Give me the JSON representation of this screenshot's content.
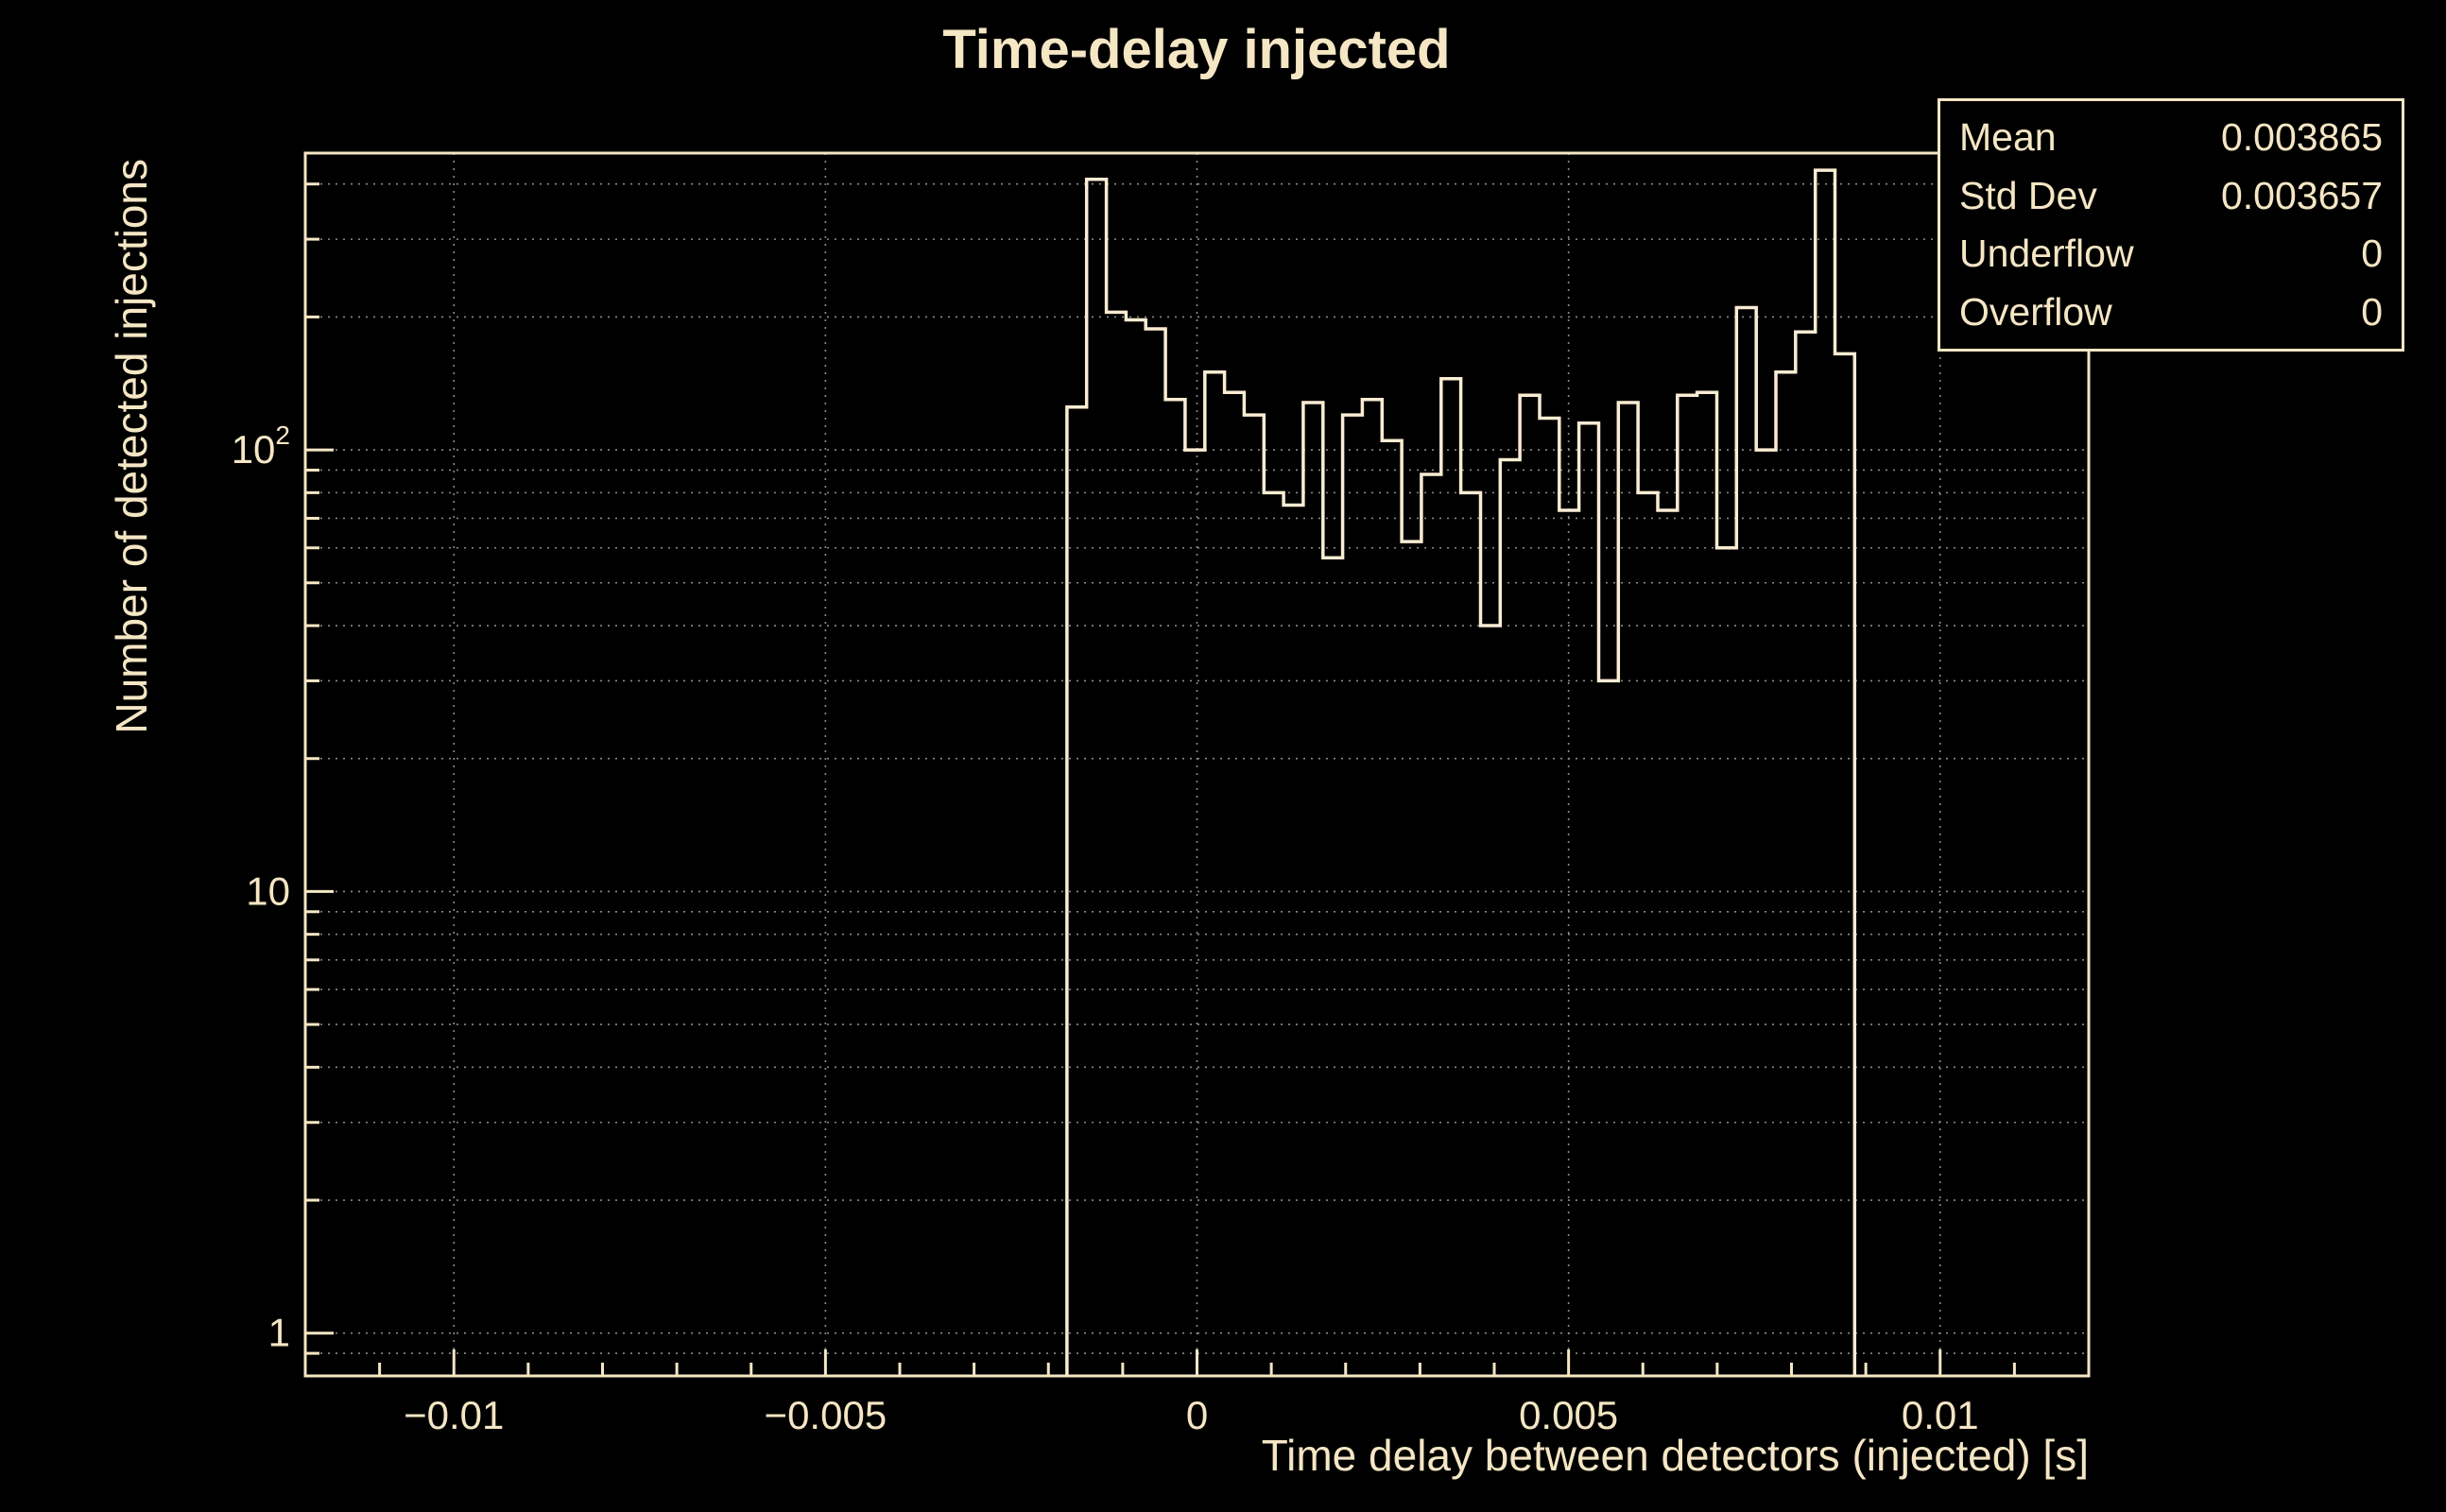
{
  "page": {
    "background": "#000000"
  },
  "chart_data": {
    "type": "histogram",
    "title": "Time-delay injected",
    "xlabel": "Time delay between detectors (injected) [s]",
    "ylabel": "Number of detected injections",
    "xscale": "linear",
    "yscale": "log",
    "xlim": [
      -0.012,
      0.012
    ],
    "ylim": [
      0.8,
      470
    ],
    "bin_start": -0.00175,
    "bin_width": 0.000265,
    "counts": [
      125,
      410,
      205,
      197,
      188,
      130,
      100,
      150,
      135,
      120,
      80,
      75,
      128,
      57,
      120,
      130,
      105,
      62,
      88,
      145,
      80,
      40,
      95,
      133,
      118,
      73,
      115,
      30,
      128,
      80,
      73,
      133,
      135,
      60,
      210,
      100,
      150,
      185,
      430,
      165
    ],
    "x_ticks": {
      "major": [
        {
          "v": -0.01,
          "label": "−0.01"
        },
        {
          "v": -0.005,
          "label": "−0.005"
        },
        {
          "v": 0,
          "label": "0"
        },
        {
          "v": 0.005,
          "label": "0.005"
        },
        {
          "v": 0.01,
          "label": "0.01"
        }
      ],
      "minor_step": 0.001
    },
    "y_ticks": {
      "major": [
        {
          "v": 1,
          "label": "1"
        },
        {
          "v": 10,
          "label": "10"
        },
        {
          "v": 100,
          "label": "10",
          "exp": "2"
        }
      ]
    },
    "grid": {
      "show": true,
      "style": "dotted"
    },
    "colors": {
      "background": "#000000",
      "foreground": "#f5e6c4",
      "line": "#f9ecd2",
      "grid": "#8a8a8a"
    }
  },
  "stats": {
    "rows": [
      {
        "label": "Mean",
        "value": "0.003865"
      },
      {
        "label": "Std Dev",
        "value": "0.003657"
      },
      {
        "label": "Underflow",
        "value": "0"
      },
      {
        "label": "Overflow",
        "value": "0"
      }
    ]
  }
}
